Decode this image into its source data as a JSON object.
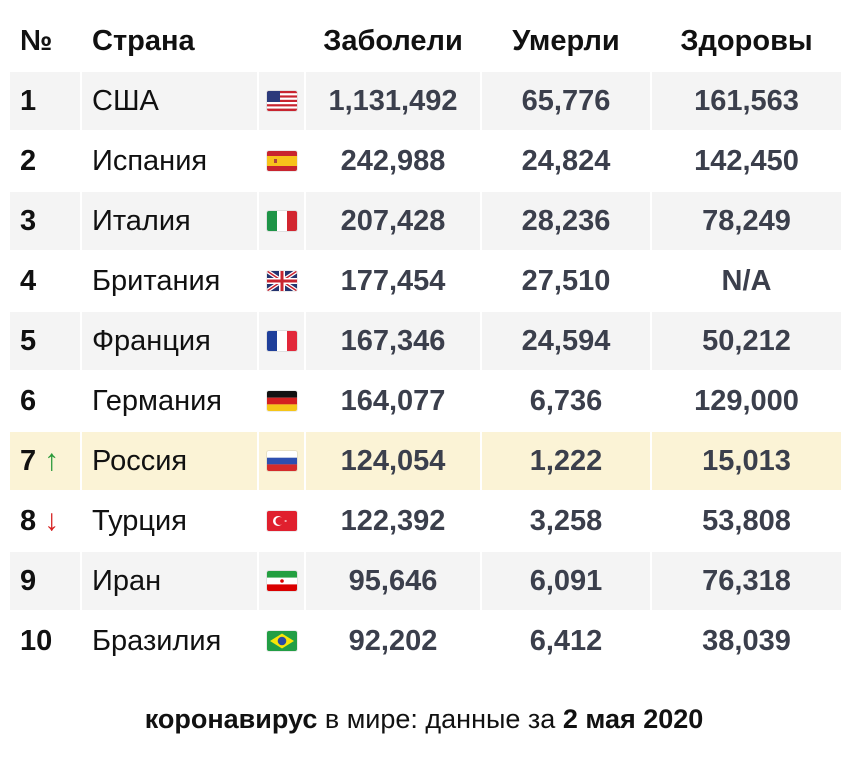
{
  "headers": {
    "num": "№",
    "country": "Страна",
    "cases": "Заболели",
    "deaths": "Умерли",
    "recovered": "Здоровы"
  },
  "rows": [
    {
      "rank": "1",
      "arrow": "",
      "country": "США",
      "flag": "us-flag",
      "cases": "1,131,492",
      "deaths": "65,776",
      "recovered": "161,563"
    },
    {
      "rank": "2",
      "arrow": "",
      "country": "Испания",
      "flag": "spain-flag",
      "cases": "242,988",
      "deaths": "24,824",
      "recovered": "142,450"
    },
    {
      "rank": "3",
      "arrow": "",
      "country": "Италия",
      "flag": "italy-flag",
      "cases": "207,428",
      "deaths": "28,236",
      "recovered": "78,249"
    },
    {
      "rank": "4",
      "arrow": "",
      "country": "Британия",
      "flag": "uk-flag",
      "cases": "177,454",
      "deaths": "27,510",
      "recovered": "N/A"
    },
    {
      "rank": "5",
      "arrow": "",
      "country": "Франция",
      "flag": "france-flag",
      "cases": "167,346",
      "deaths": "24,594",
      "recovered": "50,212"
    },
    {
      "rank": "6",
      "arrow": "",
      "country": "Германия",
      "flag": "germany-flag",
      "cases": "164,077",
      "deaths": "6,736",
      "recovered": "129,000"
    },
    {
      "rank": "7",
      "arrow": "↑",
      "country": "Россия",
      "flag": "russia-flag",
      "cases": "124,054",
      "deaths": "1,222",
      "recovered": "15,013"
    },
    {
      "rank": "8",
      "arrow": "↓",
      "country": "Турция",
      "flag": "turkey-flag",
      "cases": "122,392",
      "deaths": "3,258",
      "recovered": "53,808"
    },
    {
      "rank": "9",
      "arrow": "",
      "country": "Иран",
      "flag": "iran-flag",
      "cases": "95,646",
      "deaths": "6,091",
      "recovered": "76,318"
    },
    {
      "rank": "10",
      "arrow": "",
      "country": "Бразилия",
      "flag": "brazil-flag",
      "cases": "92,202",
      "deaths": "6,412",
      "recovered": "38,039"
    }
  ],
  "highlight_color": "#fbf3d6",
  "caption": {
    "bold1": "коронавирус",
    "normal": " в мире: данные за ",
    "bold2": "2 мая 2020"
  }
}
